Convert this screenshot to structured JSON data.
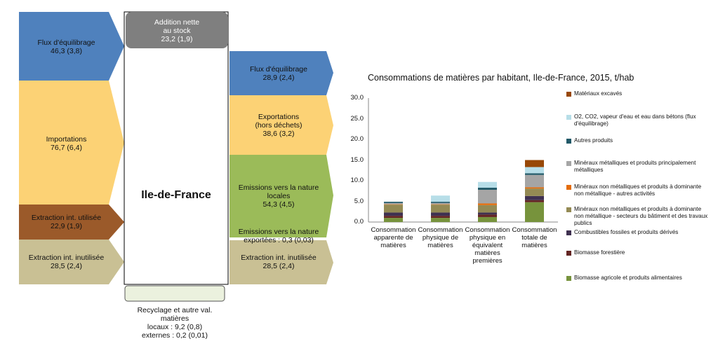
{
  "diagram": {
    "center_label": "Ile-de-France",
    "left_flows": [
      {
        "label": "Flux d'équilibrage\n46,3 (3,8)",
        "color": "#4f81bd"
      },
      {
        "label": "Importations\n76,7 (6,4)",
        "color": "#fcd275"
      },
      {
        "label": "Extraction int. utilisée\n22,9 (1,9)",
        "color": "#9b5a2a"
      },
      {
        "label": "Extraction int. inutilisée\n28,5 (2,4)",
        "color": "#c9c094"
      }
    ],
    "top_box": {
      "label": "Addition nette\nau stock\n23,2 (1,9)",
      "color": "#7f7f7f"
    },
    "right_flows": [
      {
        "label": "Flux d'équilibrage\n28,9 (2,4)",
        "color": "#4f81bd"
      },
      {
        "label": "Exportations\n(hors déchets)\n38,6 (3,2)",
        "color": "#fcd275"
      },
      {
        "label": "Emissions vers la nature\nlocales\n54,3 (4,5)",
        "color": "#9bbb59"
      },
      {
        "label": "Emissions vers la nature\nexportées : 0,3 (0,03)",
        "color": "#9bbb59"
      },
      {
        "label": "Extraction int. inutilisée\n28,5 (2,4)",
        "color": "#c9c094"
      }
    ],
    "recycling": {
      "label": "Recyclage et autre val.\nmatières\nlocaux : 9,2 (0,8)\nexternes : 0,2 (0,01)",
      "color": "#ebf1de"
    }
  },
  "chart_data": {
    "type": "bar",
    "title": "Consommations de matières par habitant, Ile-de-France, 2015, t/hab",
    "categories": [
      "Consommation apparente de matières",
      "Consommation physique de matières",
      "Consommation physique en équivalent matières premières",
      "Consommation totale de matières"
    ],
    "yticks": [
      "0.0",
      "5.0",
      "10.0",
      "15.0",
      "20.0",
      "25.0",
      "30.0"
    ],
    "ylim": [
      0,
      30
    ],
    "stacked": true,
    "series": [
      {
        "name": "Biomasse agricole et produits alimentaires",
        "color": "#77933c",
        "values": [
          1.0,
          1.0,
          1.2,
          4.8
        ]
      },
      {
        "name": "Biomasse forestière",
        "color": "#632523",
        "values": [
          0.5,
          0.5,
          0.6,
          0.5
        ]
      },
      {
        "name": "Combustibles fossiles et produits dérivés",
        "color": "#3f3151",
        "values": [
          0.8,
          0.8,
          0.5,
          1.0
        ]
      },
      {
        "name": "Minéraux non métalliques et produits à dominante non métallique - secteurs du bâtiment et des travaux publics",
        "color": "#948a54",
        "values": [
          1.9,
          1.9,
          1.8,
          1.8
        ]
      },
      {
        "name": "Minéraux non métalliques et produits à dominante non métallique - autres activités",
        "color": "#e46c0a",
        "values": [
          0.1,
          0.1,
          0.4,
          0.3
        ]
      },
      {
        "name": "Minéraux métalliques et produits principalement métalliques",
        "color": "#a5a5a5",
        "values": [
          0.3,
          0.3,
          3.3,
          3.0
        ]
      },
      {
        "name": "Autres produits",
        "color": "#215968",
        "values": [
          0.3,
          0.3,
          0.5,
          0.4
        ]
      },
      {
        "name": "O2, CO2, vapeur d'eau et eau dans bétons (flux d'équilibrage)",
        "color": "#b7dee8",
        "values": [
          0.0,
          1.5,
          1.4,
          1.5
        ]
      },
      {
        "name": "Matériaux excavés",
        "color": "#984807",
        "values": [
          0.0,
          0.0,
          0.0,
          1.7
        ]
      }
    ]
  }
}
